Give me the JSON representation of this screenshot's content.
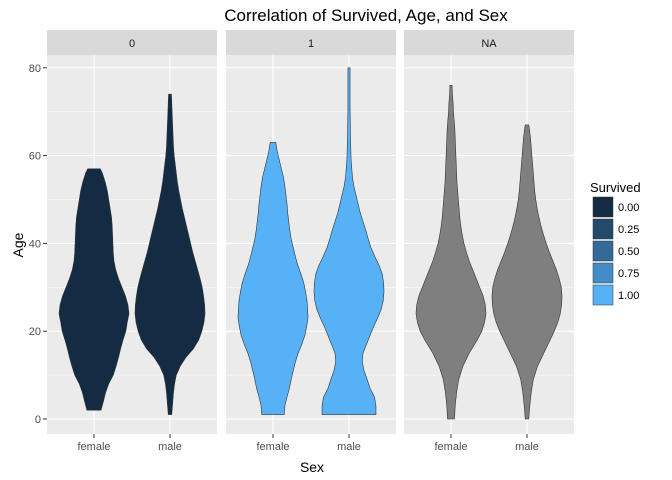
{
  "chart_data": {
    "type": "violin",
    "title": "Correlation of Survived, Age, and Sex",
    "xlabel": "Sex",
    "ylabel": "Age",
    "ylim": [
      -3,
      86
    ],
    "yticks": [
      0,
      20,
      40,
      60,
      80
    ],
    "categories": [
      "female",
      "male"
    ],
    "grid": true,
    "legend_position": "right",
    "facet_var": "Survived",
    "facets": [
      {
        "label": "0",
        "fill": "#132B43",
        "violins": [
          {
            "category": "female",
            "min": 2,
            "max": 57,
            "profile": [
              [
                2,
                0.2
              ],
              [
                4,
                0.27
              ],
              [
                6,
                0.33
              ],
              [
                8,
                0.42
              ],
              [
                10,
                0.55
              ],
              [
                12,
                0.63
              ],
              [
                14,
                0.7
              ],
              [
                16,
                0.76
              ],
              [
                18,
                0.83
              ],
              [
                20,
                0.91
              ],
              [
                22,
                0.95
              ],
              [
                24,
                1.0
              ],
              [
                26,
                0.97
              ],
              [
                28,
                0.9
              ],
              [
                30,
                0.8
              ],
              [
                32,
                0.7
              ],
              [
                34,
                0.62
              ],
              [
                36,
                0.57
              ],
              [
                38,
                0.55
              ],
              [
                40,
                0.54
              ],
              [
                42,
                0.53
              ],
              [
                44,
                0.52
              ],
              [
                46,
                0.5
              ],
              [
                48,
                0.46
              ],
              [
                50,
                0.42
              ],
              [
                52,
                0.38
              ],
              [
                54,
                0.32
              ],
              [
                56,
                0.24
              ],
              [
                57,
                0.18
              ]
            ]
          },
          {
            "category": "male",
            "min": 1,
            "max": 74,
            "profile": [
              [
                1,
                0.05
              ],
              [
                4,
                0.08
              ],
              [
                6,
                0.1
              ],
              [
                8,
                0.13
              ],
              [
                10,
                0.18
              ],
              [
                12,
                0.29
              ],
              [
                14,
                0.45
              ],
              [
                16,
                0.67
              ],
              [
                18,
                0.82
              ],
              [
                20,
                0.91
              ],
              [
                22,
                0.97
              ],
              [
                24,
                1.0
              ],
              [
                26,
                0.99
              ],
              [
                28,
                0.96
              ],
              [
                30,
                0.92
              ],
              [
                32,
                0.86
              ],
              [
                34,
                0.79
              ],
              [
                36,
                0.72
              ],
              [
                38,
                0.65
              ],
              [
                40,
                0.59
              ],
              [
                42,
                0.53
              ],
              [
                44,
                0.47
              ],
              [
                46,
                0.41
              ],
              [
                48,
                0.35
              ],
              [
                50,
                0.3
              ],
              [
                52,
                0.25
              ],
              [
                54,
                0.21
              ],
              [
                56,
                0.18
              ],
              [
                58,
                0.15
              ],
              [
                60,
                0.12
              ],
              [
                62,
                0.1
              ],
              [
                64,
                0.09
              ],
              [
                66,
                0.08
              ],
              [
                68,
                0.07
              ],
              [
                70,
                0.06
              ],
              [
                72,
                0.05
              ],
              [
                74,
                0.04
              ]
            ]
          }
        ]
      },
      {
        "label": "1",
        "fill": "#56B1F7",
        "violins": [
          {
            "category": "female",
            "min": 1,
            "max": 63,
            "profile": [
              [
                1,
                0.32
              ],
              [
                3,
                0.34
              ],
              [
                5,
                0.4
              ],
              [
                7,
                0.47
              ],
              [
                9,
                0.52
              ],
              [
                11,
                0.58
              ],
              [
                13,
                0.64
              ],
              [
                15,
                0.72
              ],
              [
                17,
                0.82
              ],
              [
                19,
                0.91
              ],
              [
                21,
                0.96
              ],
              [
                23,
                1.0
              ],
              [
                25,
                0.99
              ],
              [
                27,
                0.97
              ],
              [
                29,
                0.93
              ],
              [
                31,
                0.88
              ],
              [
                33,
                0.8
              ],
              [
                35,
                0.71
              ],
              [
                37,
                0.64
              ],
              [
                39,
                0.58
              ],
              [
                41,
                0.52
              ],
              [
                43,
                0.48
              ],
              [
                45,
                0.45
              ],
              [
                47,
                0.42
              ],
              [
                49,
                0.4
              ],
              [
                51,
                0.37
              ],
              [
                53,
                0.34
              ],
              [
                55,
                0.3
              ],
              [
                57,
                0.24
              ],
              [
                59,
                0.18
              ],
              [
                61,
                0.12
              ],
              [
                63,
                0.08
              ]
            ]
          },
          {
            "category": "male",
            "min": 1,
            "max": 80,
            "profile": [
              [
                1,
                0.77
              ],
              [
                3,
                0.77
              ],
              [
                5,
                0.73
              ],
              [
                7,
                0.6
              ],
              [
                9,
                0.52
              ],
              [
                11,
                0.43
              ],
              [
                13,
                0.38
              ],
              [
                15,
                0.4
              ],
              [
                17,
                0.5
              ],
              [
                19,
                0.6
              ],
              [
                21,
                0.7
              ],
              [
                23,
                0.82
              ],
              [
                25,
                0.92
              ],
              [
                27,
                0.98
              ],
              [
                29,
                1.0
              ],
              [
                31,
                0.99
              ],
              [
                33,
                0.95
              ],
              [
                35,
                0.86
              ],
              [
                37,
                0.74
              ],
              [
                39,
                0.63
              ],
              [
                41,
                0.55
              ],
              [
                43,
                0.48
              ],
              [
                45,
                0.4
              ],
              [
                47,
                0.32
              ],
              [
                49,
                0.26
              ],
              [
                51,
                0.2
              ],
              [
                53,
                0.14
              ],
              [
                55,
                0.1
              ],
              [
                57,
                0.08
              ],
              [
                59,
                0.06
              ],
              [
                62,
                0.05
              ],
              [
                65,
                0.04
              ],
              [
                68,
                0.035
              ],
              [
                71,
                0.03
              ],
              [
                74,
                0.03
              ],
              [
                77,
                0.03
              ],
              [
                80,
                0.03
              ]
            ]
          }
        ]
      },
      {
        "label": "NA",
        "fill": "#7F7F7F",
        "violins": [
          {
            "category": "female",
            "min": 0,
            "max": 76,
            "profile": [
              [
                0,
                0.1
              ],
              [
                3,
                0.12
              ],
              [
                6,
                0.16
              ],
              [
                9,
                0.22
              ],
              [
                12,
                0.34
              ],
              [
                15,
                0.52
              ],
              [
                18,
                0.75
              ],
              [
                20,
                0.88
              ],
              [
                22,
                0.96
              ],
              [
                24,
                1.0
              ],
              [
                26,
                0.98
              ],
              [
                28,
                0.92
              ],
              [
                30,
                0.82
              ],
              [
                32,
                0.72
              ],
              [
                34,
                0.62
              ],
              [
                36,
                0.52
              ],
              [
                38,
                0.44
              ],
              [
                40,
                0.37
              ],
              [
                42,
                0.32
              ],
              [
                44,
                0.28
              ],
              [
                46,
                0.25
              ],
              [
                48,
                0.23
              ],
              [
                50,
                0.21
              ],
              [
                52,
                0.19
              ],
              [
                54,
                0.17
              ],
              [
                56,
                0.16
              ],
              [
                58,
                0.15
              ],
              [
                60,
                0.14
              ],
              [
                62,
                0.13
              ],
              [
                64,
                0.12
              ],
              [
                66,
                0.11
              ],
              [
                68,
                0.09
              ],
              [
                70,
                0.07
              ],
              [
                72,
                0.06
              ],
              [
                74,
                0.04
              ],
              [
                76,
                0.03
              ]
            ]
          },
          {
            "category": "male",
            "min": 0,
            "max": 67,
            "profile": [
              [
                0,
                0.05
              ],
              [
                3,
                0.08
              ],
              [
                6,
                0.12
              ],
              [
                9,
                0.18
              ],
              [
                12,
                0.3
              ],
              [
                15,
                0.48
              ],
              [
                18,
                0.66
              ],
              [
                20,
                0.78
              ],
              [
                22,
                0.88
              ],
              [
                24,
                0.95
              ],
              [
                26,
                0.99
              ],
              [
                28,
                1.0
              ],
              [
                30,
                0.98
              ],
              [
                32,
                0.92
              ],
              [
                34,
                0.84
              ],
              [
                36,
                0.74
              ],
              [
                38,
                0.64
              ],
              [
                40,
                0.55
              ],
              [
                42,
                0.47
              ],
              [
                44,
                0.4
              ],
              [
                46,
                0.34
              ],
              [
                48,
                0.29
              ],
              [
                50,
                0.25
              ],
              [
                52,
                0.22
              ],
              [
                54,
                0.2
              ],
              [
                56,
                0.18
              ],
              [
                58,
                0.16
              ],
              [
                60,
                0.14
              ],
              [
                62,
                0.12
              ],
              [
                64,
                0.1
              ],
              [
                66,
                0.07
              ],
              [
                67,
                0.05
              ]
            ]
          }
        ]
      }
    ],
    "legend": {
      "title": "Survived",
      "items": [
        {
          "label": "0.00",
          "color": "#132B43"
        },
        {
          "label": "0.25",
          "color": "#234A6B"
        },
        {
          "label": "0.50",
          "color": "#336A98"
        },
        {
          "label": "0.75",
          "color": "#448CC7"
        },
        {
          "label": "1.00",
          "color": "#56B1F7"
        }
      ]
    },
    "panel_background": "#EBEBEB",
    "strip_background": "#D9D9D9",
    "grid_color": "#FFFFFF"
  }
}
